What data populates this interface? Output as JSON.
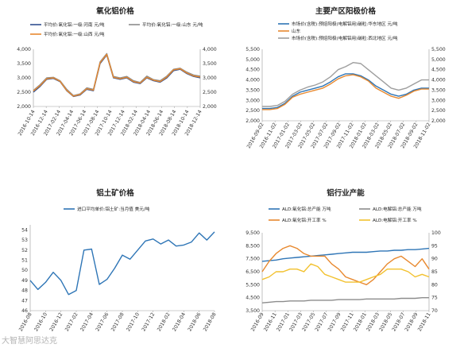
{
  "watermark": "大智慧阿思达克",
  "chart_data": [
    {
      "type": "line",
      "title": "氧化铝价格",
      "dual_axis": true,
      "x_ticks": [
        "2016-10-14",
        "2016-12-14",
        "2017-02-14",
        "2017-04-14",
        "2017-06-14",
        "2017-08-14",
        "2017-10-14",
        "2017-12-14",
        "2018-02-14",
        "2018-04-14",
        "2018-06-14",
        "2018-08-14",
        "2018-10-14",
        "2018-12-14"
      ],
      "y_ticks": [
        "2,000",
        "2,500",
        "3,000",
        "3,500",
        "4,000"
      ],
      "y2_ticks": [
        "2,000",
        "2,500",
        "3,000",
        "3,500",
        "4,000"
      ],
      "ylim": [
        2000,
        4000
      ],
      "series": [
        {
          "name": "平均价:氧化铝:一级:河南 元/吨",
          "axis": "left",
          "color": "#2f4f8f",
          "values": [
            2500,
            2700,
            2950,
            2980,
            2870,
            2550,
            2350,
            2400,
            2600,
            2550,
            3500,
            3800,
            3000,
            2950,
            3000,
            2850,
            2800,
            3000,
            2900,
            2850,
            3000,
            3250,
            3300,
            3150,
            3050,
            3000
          ]
        },
        {
          "name": "平均价:氧化铝:一级:山东 元/吨",
          "axis": "left",
          "color": "#8c8c8c",
          "values": [
            2560,
            2760,
            3000,
            3020,
            2900,
            2600,
            2380,
            2440,
            2650,
            2600,
            3560,
            3850,
            3050,
            3000,
            3050,
            2900,
            2840,
            3060,
            2940,
            2900,
            3060,
            3300,
            3340,
            3200,
            3100,
            3060
          ]
        },
        {
          "name": "平均价:氧化铝:一级:山西 元/吨",
          "axis": "right",
          "color": "#e8892f",
          "values": [
            2540,
            2730,
            2970,
            3000,
            2880,
            2560,
            2360,
            2420,
            2620,
            2570,
            3530,
            3820,
            3020,
            2970,
            3020,
            2870,
            2820,
            3020,
            2920,
            2870,
            3030,
            3280,
            3320,
            3170,
            3070,
            3030
          ]
        }
      ]
    },
    {
      "type": "line",
      "title": "主要产区阳极价格",
      "dual_axis": true,
      "x_ticks": [
        "2016-09-02",
        "2016-11-02",
        "2017-01-02",
        "2017-03-02",
        "2017-05-02",
        "2017-07-02",
        "2017-09-02",
        "2017-11-02",
        "2018-01-02",
        "2018-03-02",
        "2018-05-02",
        "2018-07-02",
        "2018-09-02",
        "2018-11-02"
      ],
      "y_ticks": [
        "2,000",
        "2,500",
        "3,000",
        "3,500",
        "4,000",
        "4,500",
        "5,000",
        "5,500"
      ],
      "y2_ticks": [
        "2,000",
        "2,500",
        "3,000",
        "3,500",
        "4,000",
        "4,500",
        "5,000",
        "5,500"
      ],
      "ylim": [
        2000,
        5500
      ],
      "series": [
        {
          "name": "市场价(含税):预焙阳极(电解铝用)碳粒:华东地区 元/吨",
          "axis": "left",
          "color": "#2e75b6",
          "values": [
            2600,
            2600,
            2650,
            2850,
            3200,
            3400,
            3500,
            3600,
            3700,
            3900,
            4150,
            4300,
            4300,
            4200,
            4000,
            3700,
            3500,
            3300,
            3200,
            3300,
            3500,
            3600,
            3600
          ]
        },
        {
          "name": "市场价(含税):预焙阳极(电解铝用)碳粒:西北地区 元/吨",
          "axis": "right",
          "color": "#9e9e9e",
          "values": [
            2700,
            2700,
            2750,
            2950,
            3300,
            3500,
            3650,
            3750,
            3900,
            4150,
            4500,
            4650,
            4850,
            4800,
            4500,
            4200,
            3900,
            3600,
            3500,
            3600,
            3800,
            4000,
            4000
          ]
        },
        {
          "name": "山东",
          "axis": "left",
          "color": "#e8892f",
          "values": [
            2550,
            2550,
            2600,
            2800,
            3150,
            3300,
            3400,
            3500,
            3600,
            3800,
            4050,
            4200,
            4250,
            4150,
            3950,
            3600,
            3400,
            3200,
            3100,
            3250,
            3450,
            3550,
            3550
          ]
        }
      ]
    },
    {
      "type": "line",
      "title": "铝土矿价格",
      "x_ticks": [
        "2016-08",
        "2016-10",
        "2016-12",
        "2017-02",
        "2017-04",
        "2017-06",
        "2017-08",
        "2017-10",
        "2017-12",
        "2018-02",
        "2018-04",
        "2018-06",
        "2018-08"
      ],
      "y_ticks": [
        "46",
        "47",
        "48",
        "49",
        "50",
        "51",
        "52",
        "53",
        "54"
      ],
      "ylim": [
        46,
        54.5
      ],
      "series": [
        {
          "name": "进口平均单价:铝土矿:当月值 美元/吨",
          "axis": "left",
          "color": "#2e75b6",
          "values": [
            49.0,
            48.1,
            48.8,
            49.8,
            49.0,
            47.6,
            48.0,
            52.0,
            52.1,
            48.6,
            49.1,
            50.2,
            51.5,
            51.1,
            52.0,
            52.9,
            53.1,
            52.6,
            53.0,
            52.4,
            52.5,
            52.8,
            53.7,
            53.0,
            53.8
          ]
        }
      ]
    },
    {
      "type": "line",
      "title": "铝行业产能",
      "dual_axis": true,
      "x_ticks": [
        "2016-09",
        "2016-11",
        "2017-01",
        "2017-03",
        "2017-05",
        "2017-07",
        "2017-09",
        "2017-11",
        "2018-01",
        "2018-03",
        "2018-05",
        "2018-07",
        "2018-09",
        "2018-11"
      ],
      "y_ticks": [
        "3,500",
        "4,500",
        "5,500",
        "6,500",
        "7,500",
        "8,500",
        "9,500"
      ],
      "y2_ticks": [
        "70",
        "75",
        "80",
        "85",
        "90",
        "95",
        "100"
      ],
      "ylim": [
        3500,
        9500
      ],
      "y2lim": [
        70,
        100
      ],
      "series": [
        {
          "name": "ALD:氧化铝:总产能 万吨",
          "axis": "left",
          "color": "#2e75b6",
          "values": [
            7300,
            7350,
            7400,
            7500,
            7550,
            7600,
            7650,
            7700,
            7750,
            7800,
            7850,
            7900,
            7950,
            8000,
            8000,
            8000,
            8050,
            8100,
            8100,
            8150,
            8150,
            8200,
            8200,
            8250,
            8300
          ]
        },
        {
          "name": "ALD:电解铝:总产能 万吨",
          "axis": "left",
          "color": "#8c8c8c",
          "values": [
            4100,
            4150,
            4200,
            4200,
            4250,
            4250,
            4250,
            4300,
            4300,
            4300,
            4300,
            4350,
            4350,
            4350,
            4350,
            4400,
            4400,
            4400,
            4400,
            4400,
            4450,
            4450,
            4450,
            4500,
            4500
          ]
        },
        {
          "name": "ALD:氧化铝:开工率 %",
          "axis": "right",
          "color": "#e8892f",
          "values": [
            85,
            89,
            92,
            94,
            95,
            94,
            92,
            91,
            91,
            91,
            88,
            86,
            83,
            82,
            81,
            80,
            82,
            85,
            88,
            90,
            91,
            89,
            87,
            90,
            86
          ]
        },
        {
          "name": "ALD:电解铝:开工率 %",
          "axis": "right",
          "color": "#f2c12e",
          "values": [
            82,
            83,
            85,
            85,
            86,
            86,
            85,
            88,
            87,
            84,
            83,
            82,
            81,
            81,
            81,
            82,
            83,
            84,
            86,
            86,
            86,
            85,
            83,
            84,
            83
          ]
        }
      ]
    }
  ]
}
